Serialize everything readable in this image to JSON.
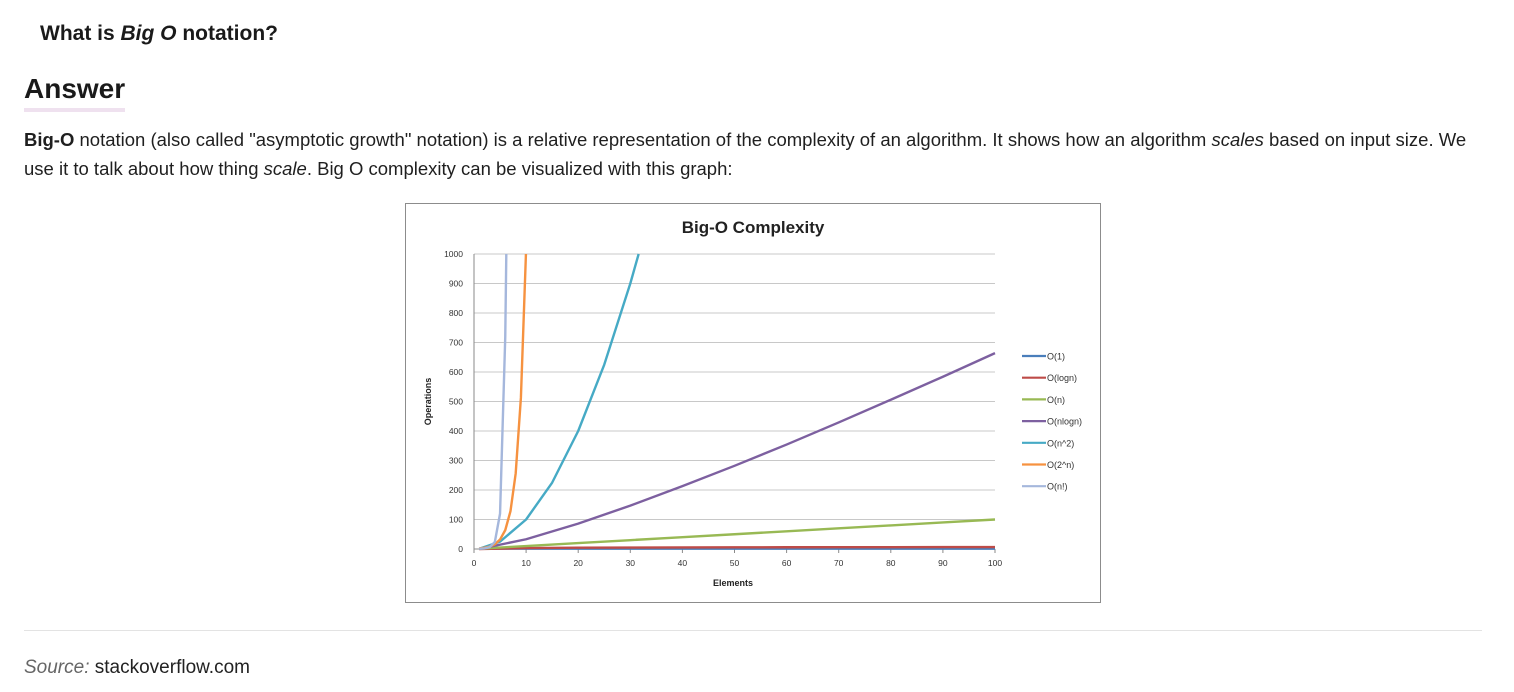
{
  "question": {
    "prefix": "What is ",
    "emphasis": "Big O",
    "suffix": " notation?"
  },
  "answer_heading": "Answer",
  "paragraph": {
    "bold_lead": "Big-O",
    "part1": " notation (also called \"asymptotic growth\" notation) is a relative representation of the complexity of an algorithm. It shows how an algorithm ",
    "em1": "scales",
    "part2": " based on input size. We use it to talk about how thing ",
    "em2": "scale",
    "part3": ". Big O complexity can be visualized with this graph:"
  },
  "source": {
    "label": "Source:",
    "value": " stackoverflow.com"
  },
  "chart_data": {
    "type": "line",
    "title": "Big-O Complexity",
    "xlabel": "Elements",
    "ylabel": "Operations",
    "xlim": [
      0,
      100
    ],
    "ylim": [
      0,
      1000
    ],
    "xticks": [
      0,
      10,
      20,
      30,
      40,
      50,
      60,
      70,
      80,
      90,
      100
    ],
    "yticks": [
      0,
      100,
      200,
      300,
      400,
      500,
      600,
      700,
      800,
      900,
      1000
    ],
    "grid": "horizontal",
    "legend": "right",
    "series": [
      {
        "name": "O(1)",
        "color": "#4a7ebb",
        "x": [
          1,
          10,
          20,
          30,
          40,
          50,
          60,
          70,
          80,
          90,
          100
        ],
        "y": [
          1,
          1,
          1,
          1,
          1,
          1,
          1,
          1,
          1,
          1,
          1
        ]
      },
      {
        "name": "O(logn)",
        "color": "#be4b48",
        "x": [
          1,
          10,
          20,
          30,
          40,
          50,
          60,
          70,
          80,
          90,
          100
        ],
        "y": [
          0,
          3.3,
          4.3,
          4.9,
          5.3,
          5.6,
          5.9,
          6.1,
          6.3,
          6.5,
          6.6
        ]
      },
      {
        "name": "O(n)",
        "color": "#98b954",
        "x": [
          1,
          10,
          20,
          30,
          40,
          50,
          60,
          70,
          80,
          90,
          100
        ],
        "y": [
          1,
          10,
          20,
          30,
          40,
          50,
          60,
          70,
          80,
          90,
          100
        ]
      },
      {
        "name": "O(nlogn)",
        "color": "#7d60a0",
        "x": [
          1,
          10,
          20,
          30,
          40,
          50,
          60,
          70,
          80,
          90,
          100
        ],
        "y": [
          0,
          33,
          86,
          147,
          213,
          282,
          354,
          429,
          506,
          584,
          664
        ]
      },
      {
        "name": "O(n^2)",
        "color": "#46aac5",
        "x": [
          1,
          5,
          10,
          15,
          20,
          25,
          30,
          31.6
        ],
        "y": [
          1,
          25,
          100,
          225,
          400,
          625,
          900,
          1000
        ]
      },
      {
        "name": "O(2^n)",
        "color": "#f69240",
        "x": [
          1,
          2,
          3,
          4,
          5,
          6,
          7,
          8,
          9,
          9.97
        ],
        "y": [
          2,
          4,
          8,
          16,
          32,
          64,
          128,
          256,
          512,
          1000
        ]
      },
      {
        "name": "O(n!)",
        "color": "#a5b7dc",
        "x": [
          1,
          2,
          3,
          4,
          5,
          6,
          6.2
        ],
        "y": [
          1,
          2,
          6,
          24,
          120,
          720,
          1000
        ]
      }
    ]
  }
}
